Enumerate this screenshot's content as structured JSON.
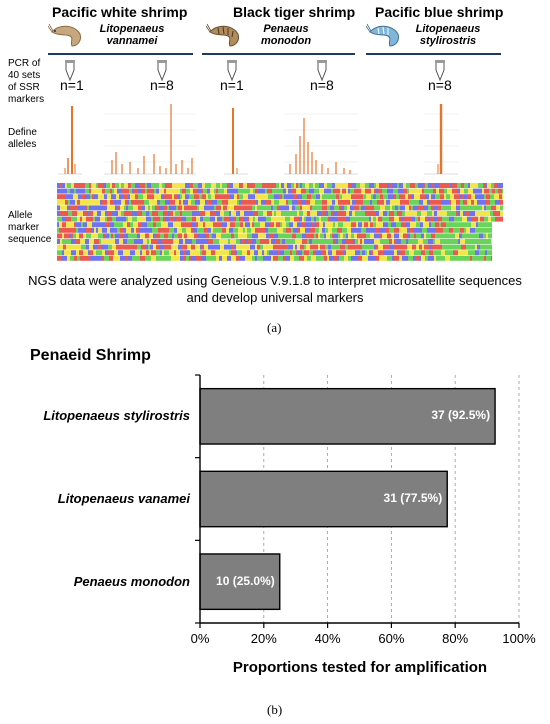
{
  "panel_a": {
    "species": [
      {
        "common": "Pacific white shrimp",
        "latin1": "Litopenaeus",
        "latin2": "vannamei"
      },
      {
        "common": "Black tiger shrimp",
        "latin1": "Penaeus",
        "latin2": "monodon"
      },
      {
        "common": "Pacific blue shrimp",
        "latin1": "Litopenaeus",
        "latin2": "stylirostris"
      }
    ],
    "row_labels": {
      "pcr": [
        "PCR of",
        "40 sets",
        "of SSR",
        "markers"
      ],
      "define": [
        "Define",
        "alleles"
      ],
      "allele": [
        "Allele",
        "marker",
        "sequence"
      ]
    },
    "n_labels": [
      "n=1",
      "n=8",
      "n=1",
      "n=8",
      "n=8"
    ],
    "ngs_text": [
      "NGS data were analyzed using Geneious V.9.1.8 to interpret microsatellite sequences",
      "and develop universal markers"
    ],
    "caption": "(a)"
  },
  "panel_b": {
    "caption": "(b)"
  },
  "colors": {
    "bar_fill": "#7f7f7f",
    "peak": "#e8742a",
    "seq_red": "#ea5a4f",
    "seq_green": "#6ad35a",
    "seq_blue": "#6f73f0",
    "seq_yellow": "#f2e64a",
    "header_line": "#1f3a5f"
  },
  "chart_data": {
    "type": "bar",
    "orientation": "horizontal",
    "title": "Penaeid Shrimp",
    "categories": [
      "Litopenaeus stylirostris",
      "Litopenaeus vanamei",
      "Penaeus monodon"
    ],
    "values": [
      92.5,
      77.5,
      25.0
    ],
    "bar_labels": [
      "37 (92.5%)",
      "31 (77.5%)",
      "10 (25.0%)"
    ],
    "xlabel": "Proportions tested for amplification",
    "xlim": [
      0,
      100
    ],
    "xticks": [
      "0%",
      "20%",
      "40%",
      "60%",
      "80%",
      "100%"
    ],
    "grid": "vertical dashed"
  }
}
